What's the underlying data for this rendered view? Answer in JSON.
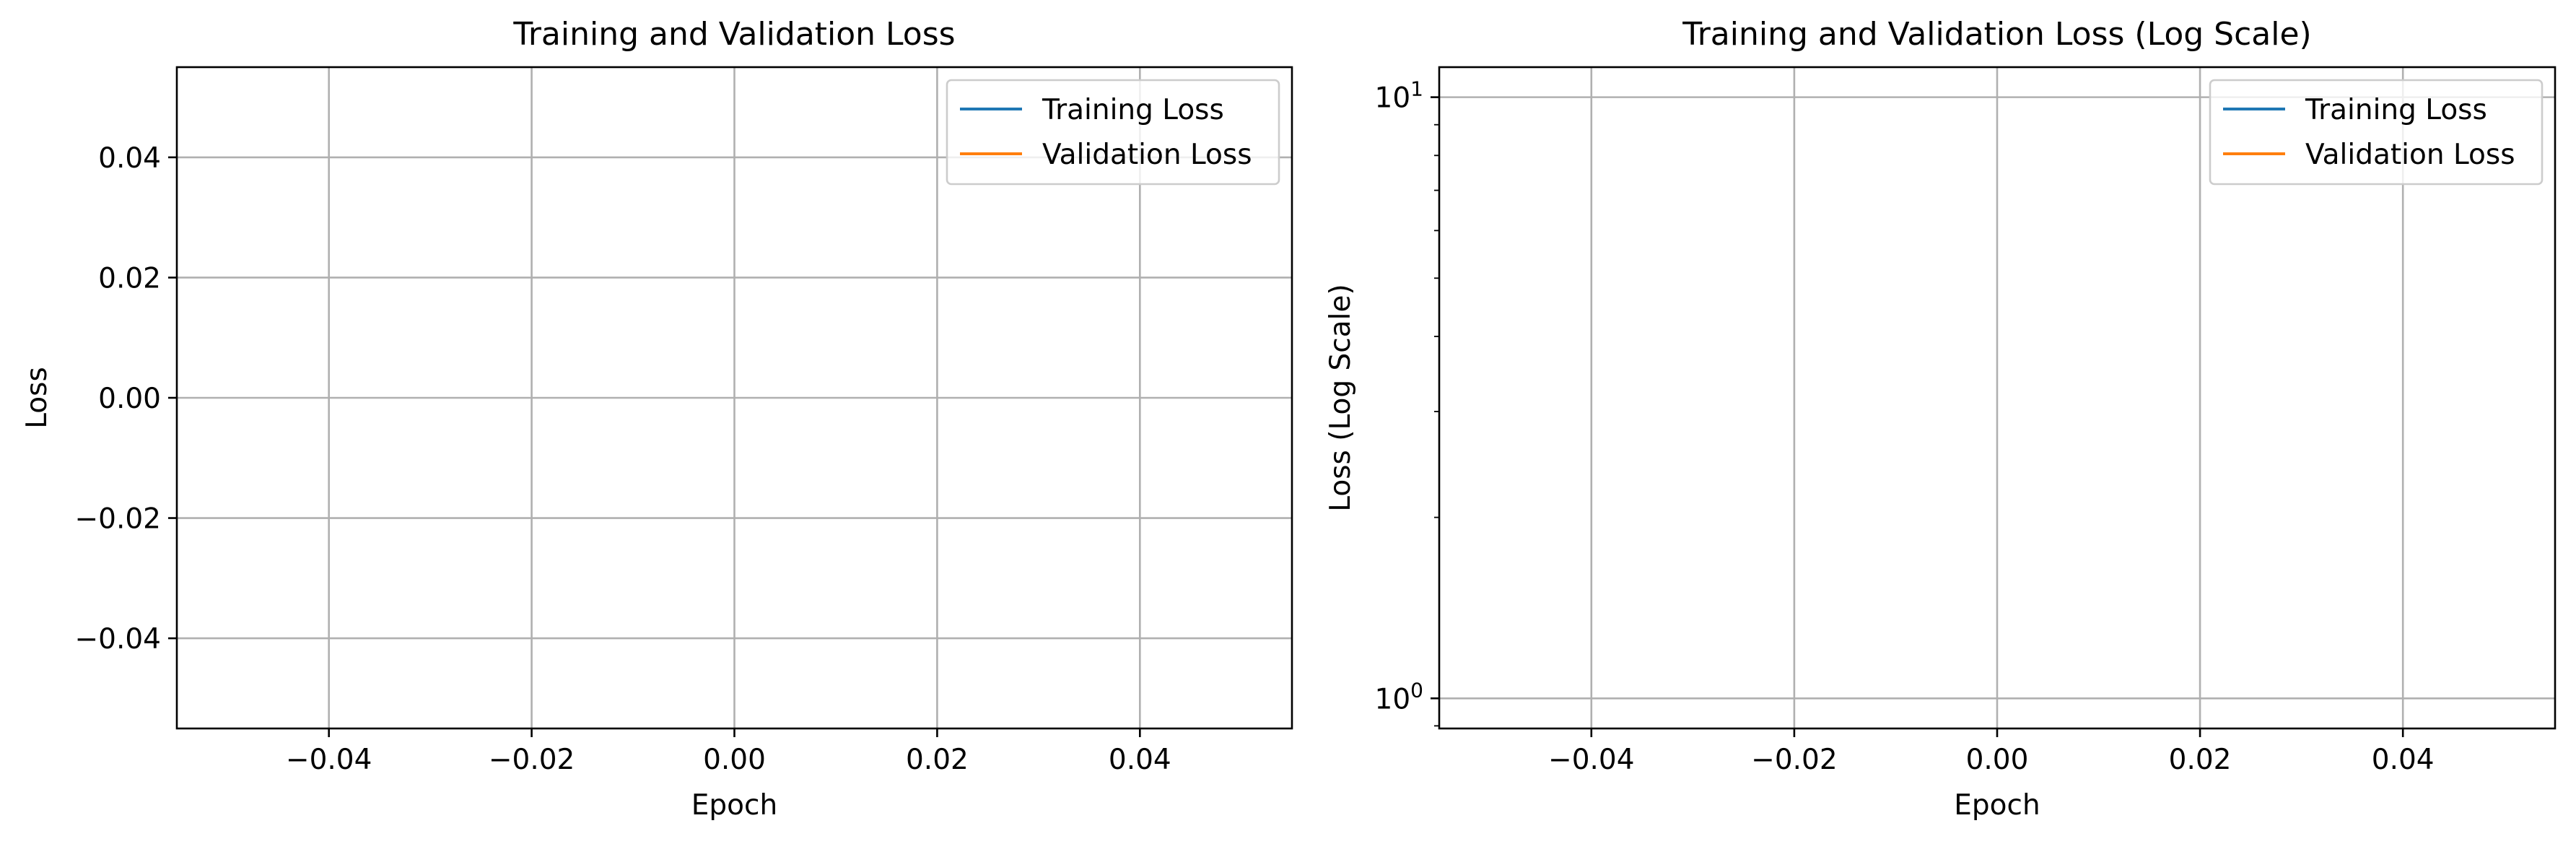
{
  "chart_data": [
    {
      "type": "line",
      "title": "Training and Validation Loss",
      "xlabel": "Epoch",
      "ylabel": "Loss",
      "xscale": "linear",
      "yscale": "linear",
      "xlim": [
        -0.055,
        0.055
      ],
      "ylim": [
        -0.055,
        0.055
      ],
      "xticks": [
        -0.04,
        -0.02,
        0.0,
        0.02,
        0.04
      ],
      "xtick_labels": [
        "−0.04",
        "−0.02",
        "0.00",
        "0.02",
        "0.04"
      ],
      "yticks": [
        -0.04,
        -0.02,
        0.0,
        0.02,
        0.04
      ],
      "ytick_labels": [
        "−0.04",
        "−0.02",
        "0.00",
        "0.02",
        "0.04"
      ],
      "grid": true,
      "legend_position": "upper right",
      "series": [
        {
          "name": "Training Loss",
          "color": "#1f77b4",
          "x": [],
          "y": []
        },
        {
          "name": "Validation Loss",
          "color": "#ff7f0e",
          "x": [],
          "y": []
        }
      ]
    },
    {
      "type": "line",
      "title": "Training and Validation Loss (Log Scale)",
      "xlabel": "Epoch",
      "ylabel": "Loss (Log Scale)",
      "xscale": "linear",
      "yscale": "log",
      "xlim": [
        -0.055,
        0.055
      ],
      "ylim": [
        0.891,
        11.22
      ],
      "xticks": [
        -0.04,
        -0.02,
        0.0,
        0.02,
        0.04
      ],
      "xtick_labels": [
        "−0.04",
        "−0.02",
        "0.00",
        "0.02",
        "0.04"
      ],
      "yticks": [
        1,
        10
      ],
      "ytick_labels": [
        {
          "base": "10",
          "exp": "0"
        },
        {
          "base": "10",
          "exp": "1"
        }
      ],
      "grid": true,
      "legend_position": "upper right",
      "series": [
        {
          "name": "Training Loss",
          "color": "#1f77b4",
          "x": [],
          "y": []
        },
        {
          "name": "Validation Loss",
          "color": "#ff7f0e",
          "x": [],
          "y": []
        }
      ]
    }
  ]
}
